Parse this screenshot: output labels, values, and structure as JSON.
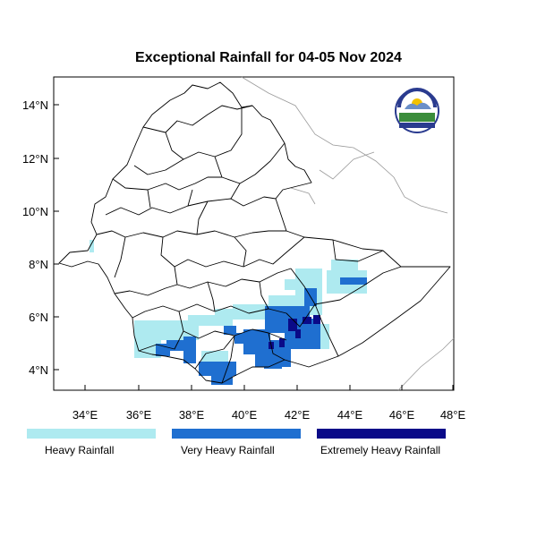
{
  "title": "Exceptional Rainfall for 04-05 Nov 2024",
  "axes": {
    "x_ticks": [
      "34°E",
      "36°E",
      "38°E",
      "40°E",
      "42°E",
      "44°E",
      "46°E",
      "48°E"
    ],
    "y_ticks": [
      "4°N",
      "6°N",
      "8°N",
      "10°N",
      "12°N",
      "14°N"
    ]
  },
  "map_extent": {
    "lon": [
      33,
      48
    ],
    "lat": [
      3.2,
      15
    ]
  },
  "legend": [
    {
      "label": "Heavy Rainfall",
      "color": "#aeeaf0"
    },
    {
      "label": "Very Heavy Rainfall",
      "color": "#1f6fd0"
    },
    {
      "label": "Extremely Heavy Rainfall",
      "color": "#0a0a88"
    }
  ],
  "logo": {
    "name": "ethiopian-meteorology-institute-logo"
  }
}
